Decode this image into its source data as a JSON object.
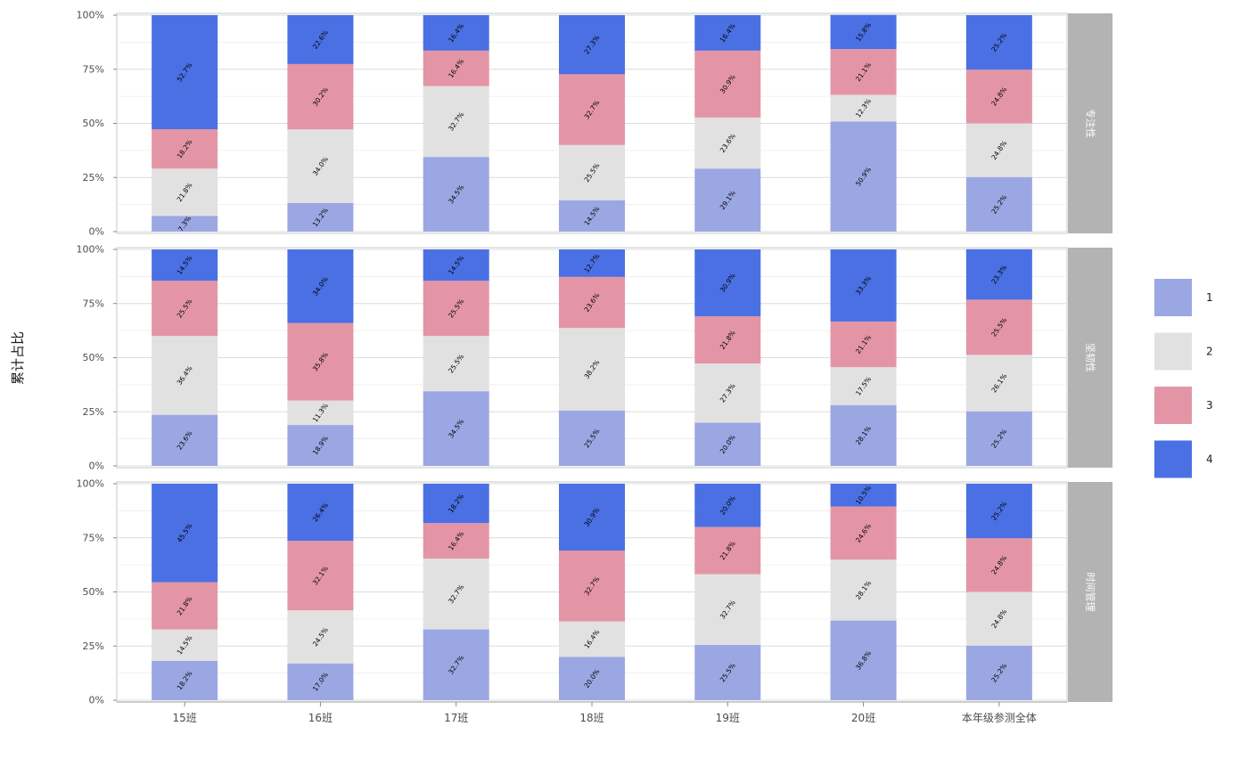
{
  "chart_data": {
    "type": "bar",
    "stacked": true,
    "normalized": true,
    "ylabel": "累计占比",
    "xlabel": "",
    "ylim": [
      0,
      100
    ],
    "y_ticks": [
      "0%",
      "25%",
      "50%",
      "75%",
      "100%"
    ],
    "categories": [
      "15班",
      "16班",
      "17班",
      "18班",
      "19班",
      "20班",
      "本年级参测全体"
    ],
    "legend": {
      "position": "right",
      "entries": [
        {
          "label": "1",
          "color": "#9BA7E3"
        },
        {
          "label": "2",
          "color": "#E1E1E1"
        },
        {
          "label": "3",
          "color": "#E495A5"
        },
        {
          "label": "4",
          "color": "#4A70E3"
        }
      ]
    },
    "facets": [
      {
        "label": "专注性",
        "series": [
          {
            "name": "1",
            "values": [
              7.3,
              13.2,
              34.5,
              14.5,
              29.1,
              50.9,
              25.2
            ],
            "labels": [
              "7.3%",
              "13.2%",
              "34.5%",
              "14.5%",
              "29.1%",
              "50.9%",
              "25.2%"
            ]
          },
          {
            "name": "2",
            "values": [
              21.8,
              34.0,
              32.7,
              25.5,
              23.6,
              12.3,
              24.8
            ],
            "labels": [
              "21.8%",
              "34.0%",
              "32.7%",
              "25.5%",
              "23.6%",
              "12.3%",
              "24.8%"
            ]
          },
          {
            "name": "3",
            "values": [
              18.2,
              30.2,
              16.4,
              32.7,
              30.9,
              21.1,
              24.8
            ],
            "labels": [
              "18.2%",
              "30.2%",
              "16.4%",
              "32.7%",
              "30.9%",
              "21.1%",
              "24.8%"
            ]
          },
          {
            "name": "4",
            "values": [
              52.7,
              22.6,
              16.4,
              27.3,
              16.4,
              15.8,
              25.2
            ],
            "labels": [
              "52.7%",
              "22.6%",
              "16.4%",
              "27.3%",
              "16.4%",
              "15.8%",
              "25.2%"
            ]
          }
        ]
      },
      {
        "label": "坚韧性",
        "series": [
          {
            "name": "1",
            "values": [
              23.6,
              18.9,
              34.5,
              25.5,
              20.0,
              28.1,
              25.2
            ],
            "labels": [
              "23.6%",
              "18.9%",
              "34.5%",
              "25.5%",
              "20.0%",
              "28.1%",
              "25.2%"
            ]
          },
          {
            "name": "2",
            "values": [
              36.4,
              11.3,
              25.5,
              38.2,
              27.3,
              17.5,
              26.1
            ],
            "labels": [
              "36.4%",
              "11.3%",
              "25.5%",
              "38.2%",
              "27.3%",
              "17.5%",
              "26.1%"
            ]
          },
          {
            "name": "3",
            "values": [
              25.5,
              35.8,
              25.5,
              23.6,
              21.8,
              21.1,
              25.5
            ],
            "labels": [
              "25.5%",
              "35.8%",
              "25.5%",
              "23.6%",
              "21.8%",
              "21.1%",
              "25.5%"
            ]
          },
          {
            "name": "4",
            "values": [
              14.5,
              34.0,
              14.5,
              12.7,
              30.9,
              33.3,
              23.3
            ],
            "labels": [
              "14.5%",
              "34.0%",
              "14.5%",
              "12.7%",
              "30.9%",
              "33.3%",
              "23.3%"
            ]
          }
        ]
      },
      {
        "label": "时间管理",
        "series": [
          {
            "name": "1",
            "values": [
              18.2,
              17.0,
              32.7,
              20.0,
              25.5,
              36.8,
              25.2
            ],
            "labels": [
              "18.2%",
              "17.0%",
              "32.7%",
              "20.0%",
              "25.5%",
              "36.8%",
              "25.2%"
            ]
          },
          {
            "name": "2",
            "values": [
              14.5,
              24.5,
              32.7,
              16.4,
              32.7,
              28.1,
              24.8
            ],
            "labels": [
              "14.5%",
              "24.5%",
              "32.7%",
              "16.4%",
              "32.7%",
              "28.1%",
              "24.8%"
            ]
          },
          {
            "name": "3",
            "values": [
              21.8,
              32.1,
              16.4,
              32.7,
              21.8,
              24.6,
              24.8
            ],
            "labels": [
              "21.8%",
              "32.1%",
              "16.4%",
              "32.7%",
              "21.8%",
              "24.6%",
              "24.8%"
            ]
          },
          {
            "name": "4",
            "values": [
              45.5,
              26.4,
              18.2,
              30.9,
              20.0,
              10.5,
              25.2
            ],
            "labels": [
              "45.5%",
              "26.4%",
              "18.2%",
              "30.9%",
              "20.0%",
              "10.5%",
              "25.2%"
            ]
          }
        ]
      }
    ]
  }
}
